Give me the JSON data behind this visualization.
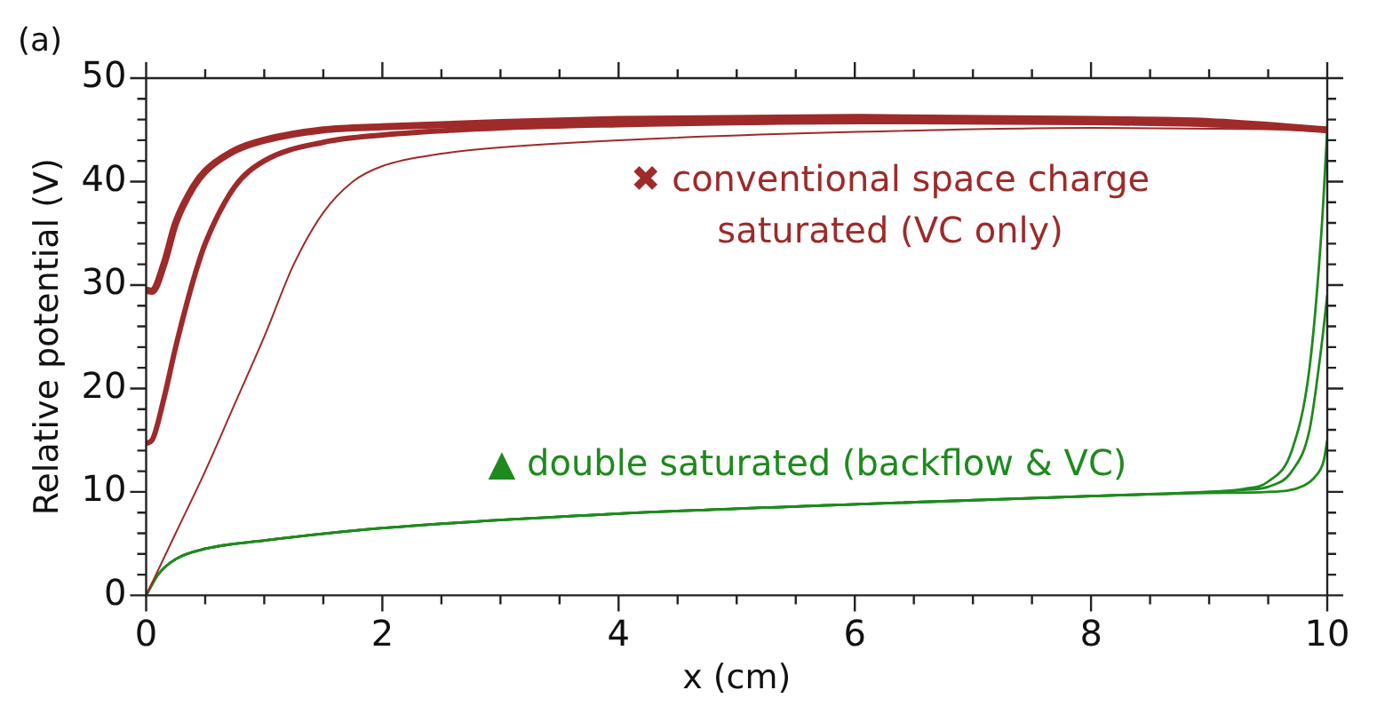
{
  "chart_data": {
    "type": "line",
    "xlabel": "x (cm)",
    "ylabel": "Relative potential (V)",
    "annotations": [
      "(a)",
      "✖ conventional space charge",
      "saturated (VC only)",
      "▲ double saturated (backflow & VC)"
    ],
    "xlim": [
      0,
      10
    ],
    "ylim": [
      0,
      50
    ],
    "xticks": [
      0,
      {
        "value": 0.5,
        "label": null
      },
      {
        "value": 1,
        "label": null
      },
      {
        "value": 1.5,
        "label": null
      },
      2,
      {
        "value": 2.5,
        "label": null
      },
      {
        "value": 3,
        "label": null
      },
      {
        "value": 3.5,
        "label": null
      },
      4,
      {
        "value": 4.5,
        "label": null
      },
      {
        "value": 5,
        "label": null
      },
      {
        "value": 5.5,
        "label": null
      },
      6,
      {
        "value": 6.5,
        "label": null
      },
      {
        "value": 7,
        "label": null
      },
      {
        "value": 7.5,
        "label": null
      },
      8,
      {
        "value": 8.5,
        "label": null
      },
      {
        "value": 9,
        "label": null
      },
      {
        "value": 9.5,
        "label": null
      },
      10
    ],
    "yticks": [
      0,
      {
        "value": 2,
        "label": null
      },
      {
        "value": 4,
        "label": null
      },
      {
        "value": 6,
        "label": null
      },
      {
        "value": 8,
        "label": null
      },
      10,
      {
        "value": 12,
        "label": null
      },
      {
        "value": 14,
        "label": null
      },
      {
        "value": 16,
        "label": null
      },
      {
        "value": 18,
        "label": null
      },
      20,
      {
        "value": 22,
        "label": null
      },
      {
        "value": 24,
        "label": null
      },
      {
        "value": 26,
        "label": null
      },
      {
        "value": 28,
        "label": null
      },
      30,
      {
        "value": 32,
        "label": null
      },
      {
        "value": 34,
        "label": null
      },
      {
        "value": 36,
        "label": null
      },
      {
        "value": 38,
        "label": null
      },
      40,
      {
        "value": 42,
        "label": null
      },
      {
        "value": 44,
        "label": null
      },
      {
        "value": 46,
        "label": null
      },
      {
        "value": 48,
        "label": null
      },
      50
    ],
    "grid": false,
    "legend": false,
    "marker": "none",
    "line_style": "solid",
    "series": [
      {
        "color": "#9e2a2a",
        "x": [
          0,
          0.05,
          0.15,
          0.25,
          0.4,
          0.5,
          0.75,
          1,
          1.5,
          2,
          3,
          4,
          6,
          8,
          9,
          10
        ],
        "values": [
          29.5,
          29.4,
          32,
          36,
          39.5,
          41,
          43,
          44,
          45,
          45.3,
          45.7,
          46,
          46.2,
          46,
          45.8,
          45
        ]
      },
      {
        "color": "#9e2a2a",
        "x": [
          0,
          0.05,
          0.15,
          0.25,
          0.4,
          0.5,
          0.75,
          1,
          1.5,
          2,
          3,
          4,
          6,
          8,
          9,
          10
        ],
        "values": [
          14.7,
          15,
          19,
          24,
          30.5,
          34,
          39.5,
          42,
          43.8,
          44.5,
          45.2,
          45.5,
          45.8,
          45.7,
          45.5,
          45
        ]
      },
      {
        "color": "#9e2a2a",
        "x": [
          0,
          0.25,
          0.5,
          0.75,
          1,
          1.25,
          1.5,
          1.75,
          2,
          2.5,
          3,
          4,
          6,
          8,
          10
        ],
        "values": [
          0,
          6,
          12,
          18.5,
          25,
          32,
          37,
          40,
          41.5,
          42.7,
          43.3,
          44,
          44.8,
          45.2,
          45
        ]
      },
      {
        "color": "#1e8a1e",
        "x": [
          0,
          0.1,
          0.25,
          0.5,
          1,
          2,
          4,
          6,
          8,
          9,
          9.3,
          9.5,
          9.7,
          9.85,
          9.95,
          10
        ],
        "values": [
          0,
          2,
          3.5,
          4.5,
          5.3,
          6.5,
          7.9,
          8.8,
          9.6,
          10,
          10.3,
          11,
          14,
          22,
          35,
          45
        ]
      },
      {
        "color": "#1e8a1e",
        "x": [
          0,
          0.1,
          0.25,
          0.5,
          1,
          2,
          4,
          6,
          8,
          9,
          9.3,
          9.5,
          9.7,
          9.85,
          9.95,
          10
        ],
        "values": [
          0,
          2,
          3.5,
          4.5,
          5.3,
          6.5,
          7.9,
          8.8,
          9.6,
          10,
          10.2,
          10.5,
          12,
          16,
          24,
          29
        ]
      },
      {
        "color": "#1e8a1e",
        "x": [
          0,
          0.1,
          0.25,
          0.5,
          1,
          2,
          4,
          6,
          8,
          9,
          9.5,
          9.8,
          9.9,
          9.97,
          10
        ],
        "values": [
          0,
          2,
          3.5,
          4.5,
          5.3,
          6.5,
          7.9,
          8.8,
          9.6,
          9.9,
          10,
          10.6,
          11.5,
          13,
          15
        ]
      }
    ]
  }
}
